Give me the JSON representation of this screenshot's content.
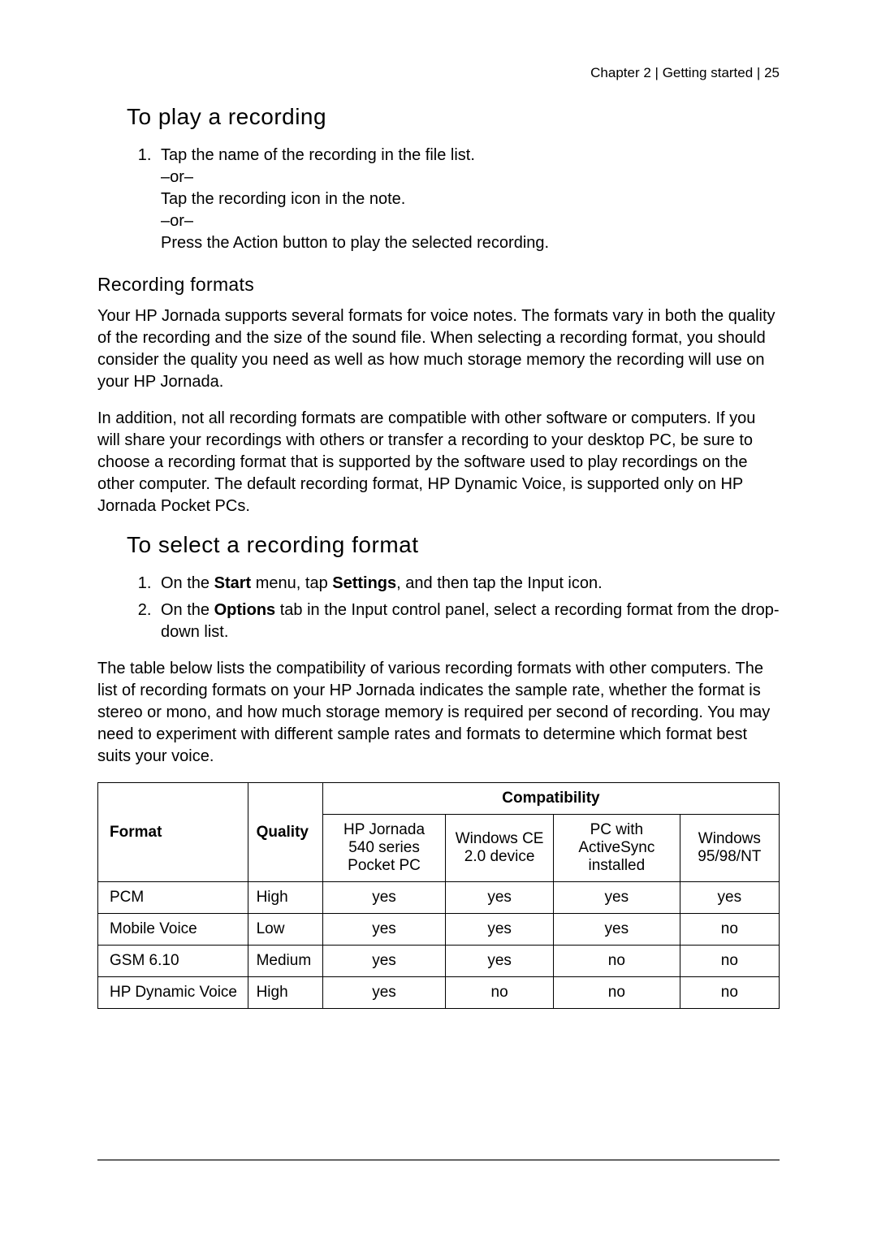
{
  "header": {
    "chapter": "Chapter 2",
    "section": "Getting started",
    "page": "25",
    "separator": " | "
  },
  "sections": {
    "play": {
      "title": "To play a recording",
      "step1_a": "Tap the name of the recording in the file list.",
      "or1": "–or–",
      "step1_b": "Tap the recording icon in the note.",
      "or2": "–or–",
      "step1_c": "Press the Action button to play the selected recording."
    },
    "formats": {
      "title": "Recording formats",
      "para1": "Your HP Jornada supports several formats for voice notes. The formats vary in both the quality of the recording and the size of the sound file. When selecting a recording format, you should consider the quality you need as well as how much storage memory the recording will use on your HP Jornada.",
      "para2": "In addition, not all recording formats are compatible with other software or computers. If you will share your recordings with others or transfer a recording to your desktop PC, be sure to choose a recording format that is supported by the software used to play recordings on the other computer. The default recording format, HP Dynamic Voice, is supported only on HP Jornada Pocket PCs."
    },
    "select": {
      "title": "To select a recording format",
      "step1_pre": "On the ",
      "step1_b1": "Start",
      "step1_mid1": " menu, tap ",
      "step1_b2": "Settings",
      "step1_post": ", and then tap the Input icon.",
      "step2_pre": "On the ",
      "step2_b1": "Options",
      "step2_post": " tab in the Input control panel, select a recording format from the drop-down list."
    },
    "table_intro": "The table below lists the compatibility of various recording formats with other computers. The list of recording formats on your HP Jornada indicates the sample rate, whether the format is stereo or mono, and how much storage memory is required per second of recording. You may need to experiment with different sample rates and formats to determine which format best suits your voice."
  },
  "table": {
    "headers": {
      "format": "Format",
      "quality": "Quality",
      "compatibility": "Compatibility",
      "col1": "HP Jornada 540 series Pocket PC",
      "col2": "Windows CE 2.0 device",
      "col3": "PC with ActiveSync installed",
      "col4": "Windows 95/98/NT"
    },
    "rows": [
      {
        "format": "PCM",
        "quality": "High",
        "c1": "yes",
        "c2": "yes",
        "c3": "yes",
        "c4": "yes"
      },
      {
        "format": "Mobile Voice",
        "quality": "Low",
        "c1": "yes",
        "c2": "yes",
        "c3": "yes",
        "c4": "no"
      },
      {
        "format": "GSM 6.10",
        "quality": "Medium",
        "c1": "yes",
        "c2": "yes",
        "c3": "no",
        "c4": "no"
      },
      {
        "format": "HP Dynamic Voice",
        "quality": "High",
        "c1": "yes",
        "c2": "no",
        "c3": "no",
        "c4": "no"
      }
    ]
  },
  "style": {
    "page_bg": "#ffffff",
    "text_color": "#000000",
    "rule_color": "#666666",
    "body_fontsize": 20,
    "h2_fontsize": 28,
    "h3_fontsize": 23,
    "table_border_color": "#000000"
  }
}
